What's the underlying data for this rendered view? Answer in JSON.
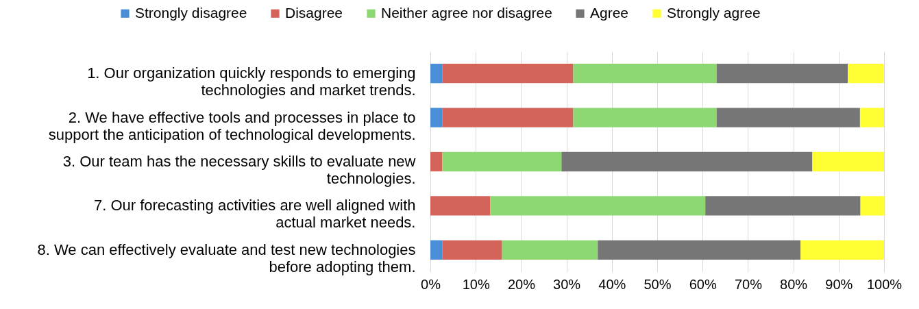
{
  "chart_data": {
    "type": "bar",
    "orientation": "horizontal",
    "stacked": true,
    "legend": "top",
    "grid": "x",
    "categories": [
      "1. Our organization quickly responds to emerging technologies and market trends.",
      "2. We have effective tools and processes in place to support the anticipation of technological developments.",
      "3. Our team has the necessary skills to evaluate new technologies.",
      "7. Our forecasting activities are well aligned with actual market needs.",
      "8. We can effectively evaluate and test new technologies before adopting them."
    ],
    "series": [
      {
        "name": "Strongly disagree",
        "color": "#4a8fd6",
        "values": [
          2.6,
          2.6,
          0,
          0,
          2.6
        ]
      },
      {
        "name": "Disagree",
        "color": "#d4645a",
        "values": [
          28.9,
          28.9,
          2.6,
          13.2,
          13.2
        ]
      },
      {
        "name": "Neither agree nor disagree",
        "color": "#8ed873",
        "values": [
          31.6,
          31.6,
          26.3,
          47.4,
          21.1
        ]
      },
      {
        "name": "Agree",
        "color": "#767676",
        "values": [
          28.9,
          31.6,
          55.3,
          34.2,
          44.7
        ]
      },
      {
        "name": "Strongly agree",
        "color": "#ffff33",
        "values": [
          7.9,
          5.3,
          15.8,
          5.3,
          18.4
        ]
      }
    ],
    "xlim": [
      0,
      100
    ],
    "xticks": [
      {
        "value": 0,
        "label": "0%"
      },
      {
        "value": 10,
        "label": "10%"
      },
      {
        "value": 20,
        "label": "20%"
      },
      {
        "value": 30,
        "label": "30%"
      },
      {
        "value": 40,
        "label": "40%"
      },
      {
        "value": 50,
        "label": "50%"
      },
      {
        "value": 60,
        "label": "60%"
      },
      {
        "value": 70,
        "label": "70%"
      },
      {
        "value": 80,
        "label": "80%"
      },
      {
        "value": 90,
        "label": "90%"
      },
      {
        "value": 100,
        "label": "100%"
      }
    ]
  }
}
